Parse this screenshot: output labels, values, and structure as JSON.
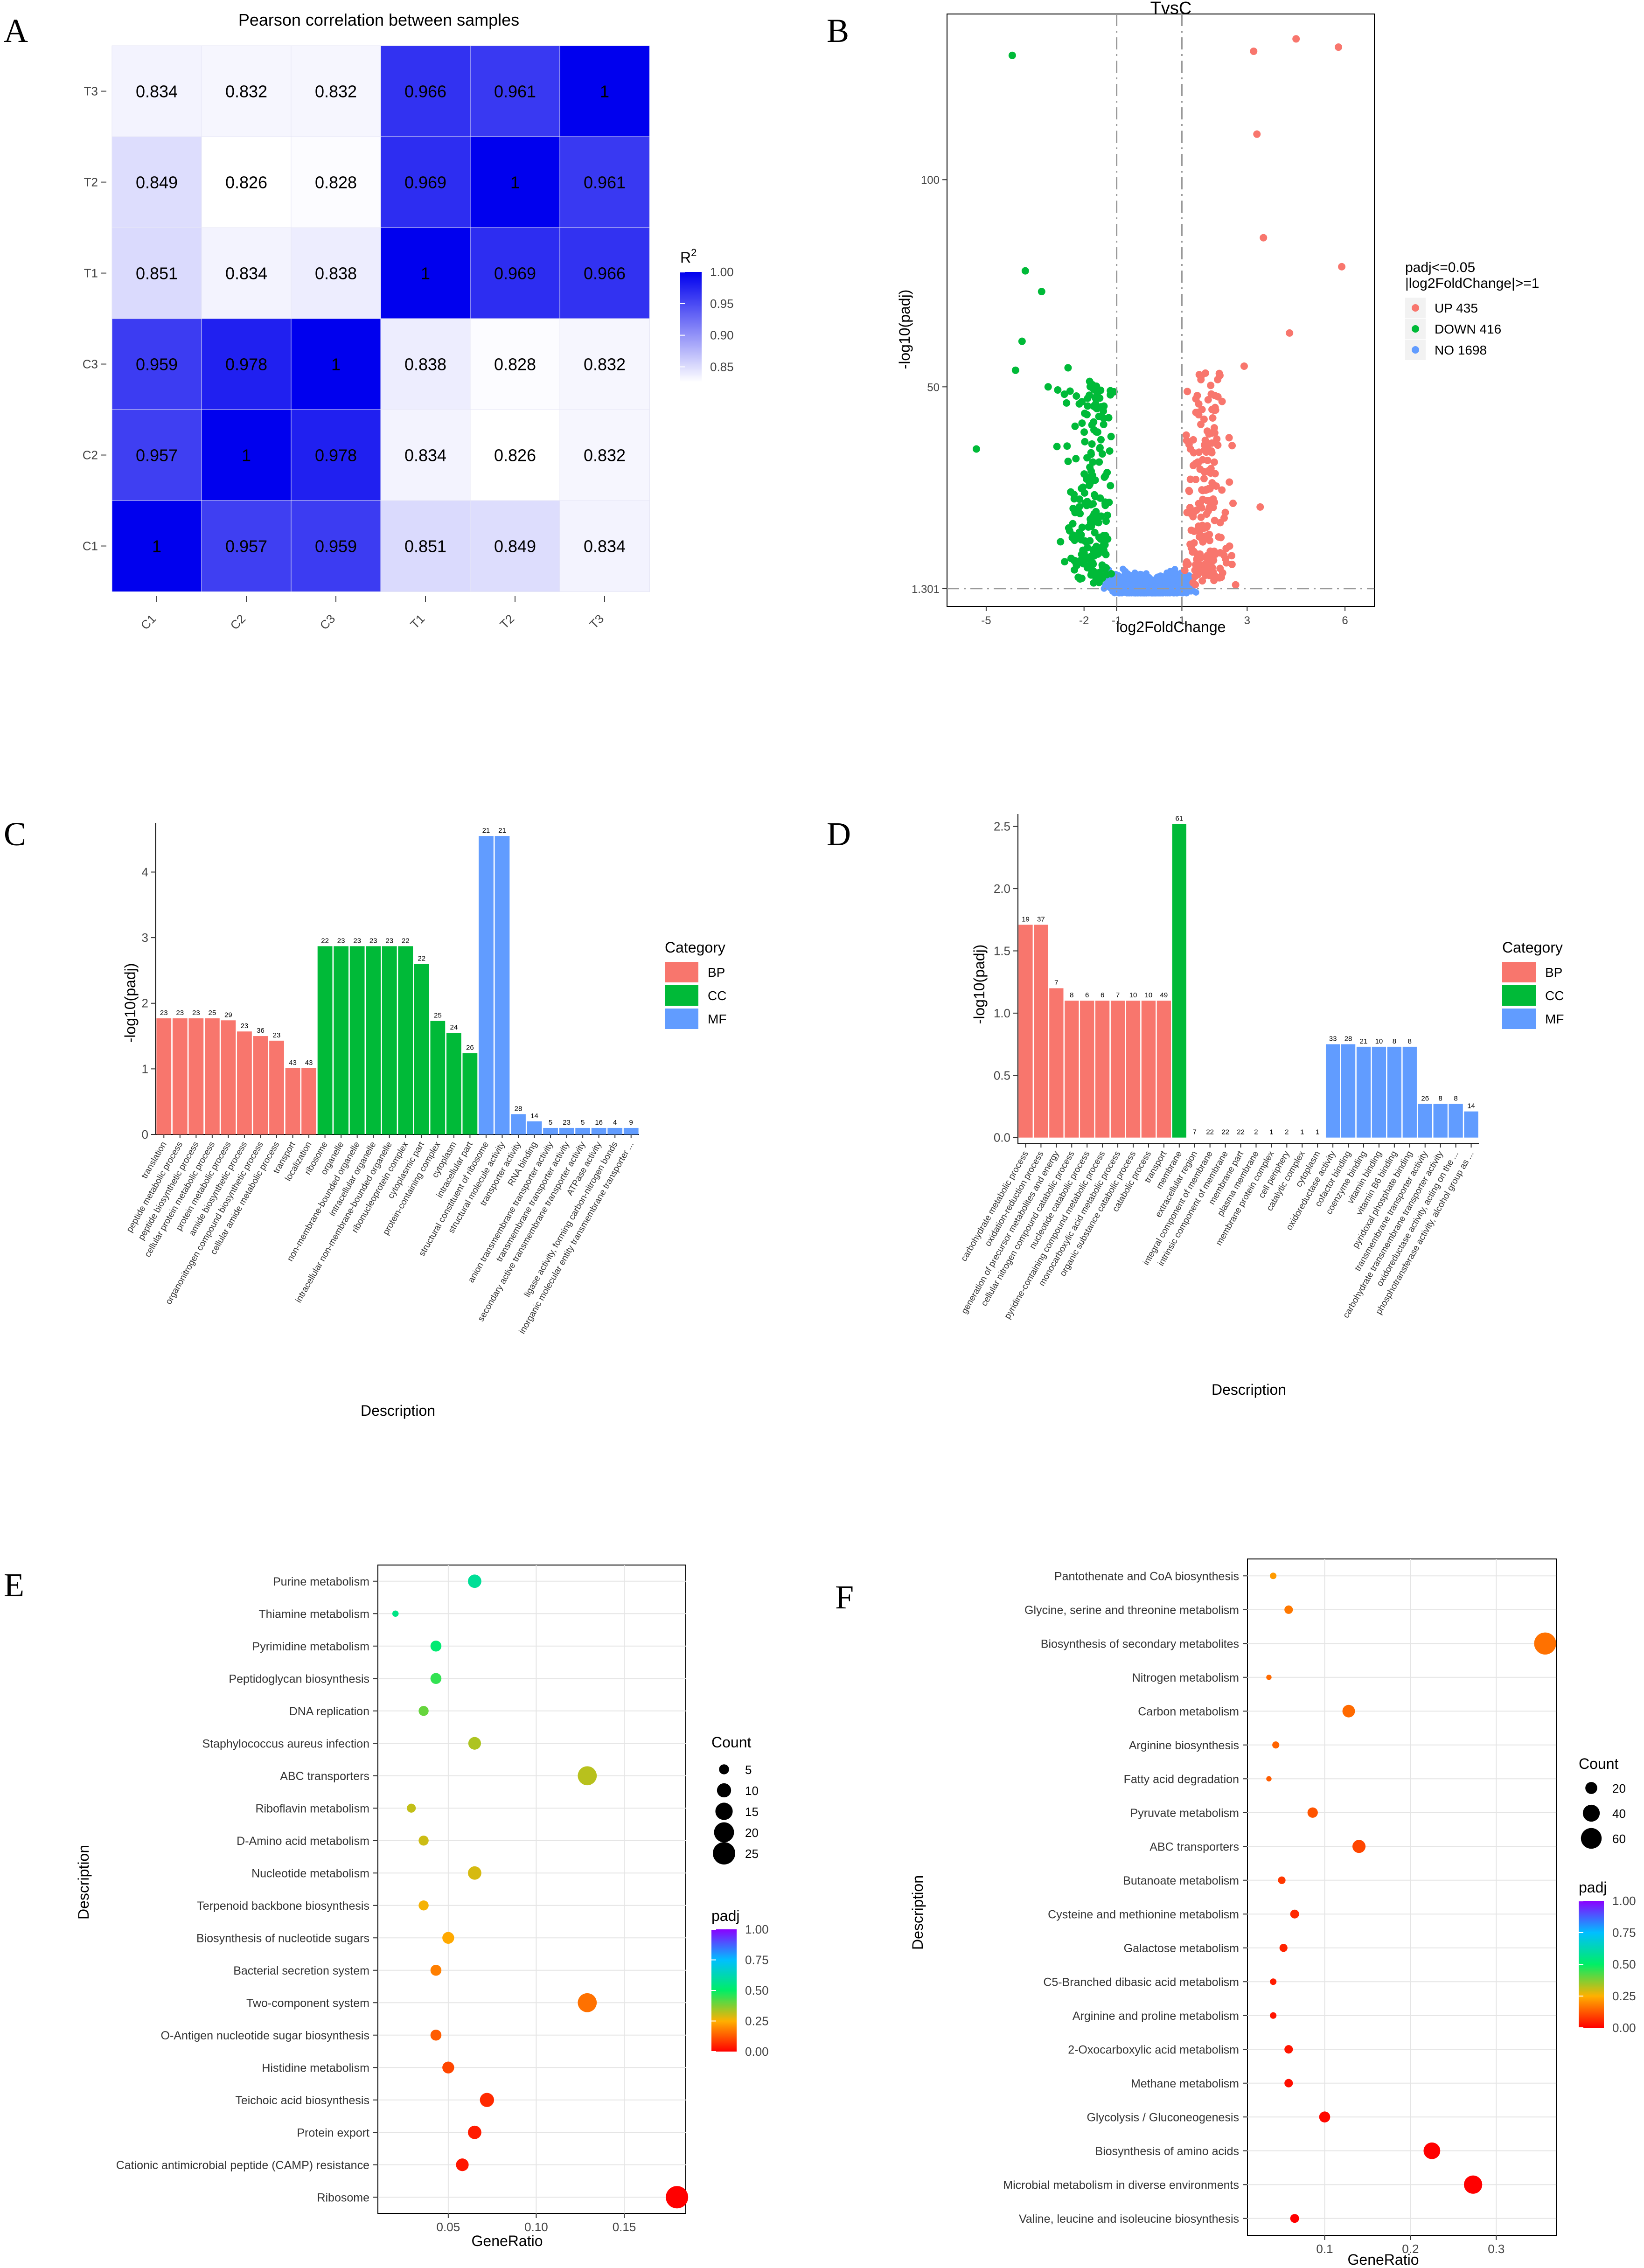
{
  "panels": {
    "A": {
      "label": "A",
      "title": "Pearson correlation between samples",
      "rows": [
        "T3",
        "T2",
        "T1",
        "C3",
        "C2",
        "C1"
      ],
      "cols": [
        "C1",
        "C2",
        "C3",
        "T1",
        "T2",
        "T3"
      ],
      "matrix": [
        [
          "0.834",
          "0.832",
          "0.832",
          "0.966",
          "0.961",
          "1"
        ],
        [
          "0.849",
          "0.826",
          "0.828",
          "0.969",
          "1",
          "0.961"
        ],
        [
          "0.851",
          "0.834",
          "0.838",
          "1",
          "0.969",
          "0.966"
        ],
        [
          "0.959",
          "0.978",
          "1",
          "0.838",
          "0.828",
          "0.832"
        ],
        [
          "0.957",
          "1",
          "0.978",
          "0.834",
          "0.826",
          "0.832"
        ],
        [
          "1",
          "0.957",
          "0.959",
          "0.851",
          "0.849",
          "0.834"
        ]
      ],
      "legend_title": "R",
      "legend_sup": "2",
      "legend_ticks": [
        "1.00",
        "0.95",
        "0.90",
        "0.85"
      ],
      "legend_values": [
        1.0,
        0.95,
        0.9,
        0.85
      ],
      "range": [
        0.826,
        1.0
      ],
      "color_low": "#ffffff",
      "color_high": "#0000ee"
    },
    "B": {
      "label": "B",
      "title": "TvsC",
      "xlabel": "log2FoldChange",
      "ylabel": "-log10(padj)",
      "xticks": [
        "-5",
        "-2",
        "-1",
        "1",
        "3",
        "6"
      ],
      "xtick_values": [
        -5,
        -2,
        -1,
        1,
        3,
        6
      ],
      "yticks": [
        "1.301",
        "50",
        "100"
      ],
      "ytick_values": [
        1.301,
        50,
        100
      ],
      "xlim": [
        -6.2,
        6.9
      ],
      "ylim": [
        -3,
        140
      ],
      "legend_title_1": "padj<=0.05",
      "legend_title_2": "|log2FoldChange|>=1",
      "legend": [
        {
          "label": "UP 435",
          "color": "#f8766d"
        },
        {
          "label": "DOWN 416",
          "color": "#00ba38"
        },
        {
          "label": "NO 1698",
          "color": "#619cff"
        }
      ],
      "highlight_up": [
        [
          3.2,
          131
        ],
        [
          4.5,
          134
        ],
        [
          5.8,
          132
        ],
        [
          5.9,
          79
        ],
        [
          3.3,
          111
        ],
        [
          3.5,
          86
        ],
        [
          4.3,
          63
        ],
        [
          3.4,
          21
        ]
      ],
      "highlight_down": [
        [
          -4.2,
          130
        ],
        [
          -3.8,
          78
        ],
        [
          -3.3,
          73
        ],
        [
          -3.9,
          61
        ],
        [
          -4.1,
          54
        ],
        [
          -5.3,
          35
        ],
        [
          -3.1,
          50
        ]
      ]
    },
    "C": {
      "label": "C",
      "xlabel": "Description",
      "ylabel": "-log10(padj)",
      "ylim": [
        0,
        4.75
      ],
      "yticks": [
        0,
        1,
        2,
        3,
        4
      ],
      "legend_title": "Category",
      "legend": [
        {
          "label": "BP",
          "color": "#f8766d"
        },
        {
          "label": "CC",
          "color": "#00ba38"
        },
        {
          "label": "MF",
          "color": "#619cff"
        }
      ],
      "bars": [
        {
          "term": "translation",
          "value": 1.77,
          "count": "23",
          "cat": "BP"
        },
        {
          "term": "peptide metabolic process",
          "value": 1.77,
          "count": "23",
          "cat": "BP"
        },
        {
          "term": "peptide biosynthetic process",
          "value": 1.77,
          "count": "23",
          "cat": "BP"
        },
        {
          "term": "cellular protein metabolic process",
          "value": 1.77,
          "count": "25",
          "cat": "BP"
        },
        {
          "term": "protein metabolic process",
          "value": 1.74,
          "count": "29",
          "cat": "BP"
        },
        {
          "term": "amide biosynthetic process",
          "value": 1.57,
          "count": "23",
          "cat": "BP"
        },
        {
          "term": "organonitrogen compound biosynthetic process",
          "value": 1.5,
          "count": "36",
          "cat": "BP"
        },
        {
          "term": "cellular amide metabolic process",
          "value": 1.43,
          "count": "23",
          "cat": "BP"
        },
        {
          "term": "transport",
          "value": 1.01,
          "count": "43",
          "cat": "BP"
        },
        {
          "term": "localization",
          "value": 1.01,
          "count": "43",
          "cat": "BP"
        },
        {
          "term": "ribosome",
          "value": 2.87,
          "count": "22",
          "cat": "CC"
        },
        {
          "term": "organelle",
          "value": 2.87,
          "count": "23",
          "cat": "CC"
        },
        {
          "term": "non-membrane-bounded organelle",
          "value": 2.87,
          "count": "23",
          "cat": "CC"
        },
        {
          "term": "intracellular organelle",
          "value": 2.87,
          "count": "23",
          "cat": "CC"
        },
        {
          "term": "intracellular non-membrane-bounded organelle",
          "value": 2.87,
          "count": "23",
          "cat": "CC"
        },
        {
          "term": "ribonucleoprotein complex",
          "value": 2.87,
          "count": "22",
          "cat": "CC"
        },
        {
          "term": "cytoplasmic part",
          "value": 2.6,
          "count": "22",
          "cat": "CC"
        },
        {
          "term": "protein-containing complex",
          "value": 1.73,
          "count": "25",
          "cat": "CC"
        },
        {
          "term": "cytoplasm",
          "value": 1.55,
          "count": "24",
          "cat": "CC"
        },
        {
          "term": "intracellular part",
          "value": 1.24,
          "count": "26",
          "cat": "CC"
        },
        {
          "term": "structural constituent of ribosome",
          "value": 4.55,
          "count": "21",
          "cat": "MF"
        },
        {
          "term": "structural molecule activity",
          "value": 4.55,
          "count": "21",
          "cat": "MF"
        },
        {
          "term": "transporter activity",
          "value": 0.31,
          "count": "28",
          "cat": "MF"
        },
        {
          "term": "RNA binding",
          "value": 0.2,
          "count": "14",
          "cat": "MF"
        },
        {
          "term": "anion transmembrane transporter activity",
          "value": 0.1,
          "count": "5",
          "cat": "MF"
        },
        {
          "term": "transmembrane transporter activity",
          "value": 0.1,
          "count": "23",
          "cat": "MF"
        },
        {
          "term": "secondary active transmembrane transporter activity",
          "value": 0.1,
          "count": "5",
          "cat": "MF"
        },
        {
          "term": "ATPase activity",
          "value": 0.1,
          "count": "16",
          "cat": "MF"
        },
        {
          "term": "ligase activity, forming carbon-nitrogen bonds",
          "value": 0.1,
          "count": "4",
          "cat": "MF"
        },
        {
          "term": "inorganic molecular entity transmembrane transporter ...",
          "value": 0.1,
          "count": "9",
          "cat": "MF"
        }
      ]
    },
    "D": {
      "label": "D",
      "xlabel": "Description",
      "ylabel": "-log10(padj)",
      "ylim": [
        -0.05,
        2.6
      ],
      "yticks": [
        0.0,
        0.5,
        1.0,
        1.5,
        2.0,
        2.5
      ],
      "ytick_labels": [
        "0.0",
        "0.5",
        "1.0",
        "1.5",
        "2.0",
        "2.5"
      ],
      "legend_title": "Category",
      "legend": [
        {
          "label": "BP",
          "color": "#f8766d"
        },
        {
          "label": "CC",
          "color": "#00ba38"
        },
        {
          "label": "MF",
          "color": "#619cff"
        }
      ],
      "bars": [
        {
          "term": "carbohydrate metabolic process",
          "value": 1.71,
          "count": "19",
          "cat": "BP"
        },
        {
          "term": "oxidation-reduction process",
          "value": 1.71,
          "count": "37",
          "cat": "BP"
        },
        {
          "term": "generation of precursor metabolites and energy",
          "value": 1.2,
          "count": "7",
          "cat": "BP"
        },
        {
          "term": "cellular nitrogen compound catabolic process",
          "value": 1.1,
          "count": "8",
          "cat": "BP"
        },
        {
          "term": "nucleotide catabolic process",
          "value": 1.1,
          "count": "6",
          "cat": "BP"
        },
        {
          "term": "pyridine-containing compound metabolic process",
          "value": 1.1,
          "count": "6",
          "cat": "BP"
        },
        {
          "term": "monocarboxylic acid metabolic process",
          "value": 1.1,
          "count": "7",
          "cat": "BP"
        },
        {
          "term": "organic substance catabolic process",
          "value": 1.1,
          "count": "10",
          "cat": "BP"
        },
        {
          "term": "catabolic process",
          "value": 1.1,
          "count": "10",
          "cat": "BP"
        },
        {
          "term": "transport",
          "value": 1.1,
          "count": "49",
          "cat": "BP"
        },
        {
          "term": "membrane",
          "value": 2.52,
          "count": "61",
          "cat": "CC"
        },
        {
          "term": "extracellular region",
          "value": 0.0,
          "count": "7",
          "cat": "CC"
        },
        {
          "term": "integral component of membrane",
          "value": 0.0,
          "count": "22",
          "cat": "CC"
        },
        {
          "term": "intrinsic component of membrane",
          "value": 0.0,
          "count": "22",
          "cat": "CC"
        },
        {
          "term": "membrane part",
          "value": 0.0,
          "count": "22",
          "cat": "CC"
        },
        {
          "term": "plasma membrane",
          "value": 0.0,
          "count": "2",
          "cat": "CC"
        },
        {
          "term": "membrane protein complex",
          "value": 0.0,
          "count": "1",
          "cat": "CC"
        },
        {
          "term": "cell periphery",
          "value": 0.0,
          "count": "2",
          "cat": "CC"
        },
        {
          "term": "catalytic complex",
          "value": 0.0,
          "count": "1",
          "cat": "CC"
        },
        {
          "term": "cytoplasm",
          "value": 0.0,
          "count": "1",
          "cat": "CC"
        },
        {
          "term": "oxidoreductase activity",
          "value": 0.75,
          "count": "33",
          "cat": "MF"
        },
        {
          "term": "cofactor binding",
          "value": 0.75,
          "count": "28",
          "cat": "MF"
        },
        {
          "term": "coenzyme binding",
          "value": 0.73,
          "count": "21",
          "cat": "MF"
        },
        {
          "term": "vitamin binding",
          "value": 0.73,
          "count": "10",
          "cat": "MF"
        },
        {
          "term": "vitamin B6 binding",
          "value": 0.73,
          "count": "8",
          "cat": "MF"
        },
        {
          "term": "pyridoxal phosphate binding",
          "value": 0.73,
          "count": "8",
          "cat": "MF"
        },
        {
          "term": "transmembrane transporter activity",
          "value": 0.27,
          "count": "26",
          "cat": "MF"
        },
        {
          "term": "carbohydrate transmembrane transporter activity",
          "value": 0.27,
          "count": "8",
          "cat": "MF"
        },
        {
          "term": "oxidoreductase activity, acting on the ...",
          "value": 0.27,
          "count": "8",
          "cat": "MF"
        },
        {
          "term": "phosphotransferase activity, alcohol group as ...",
          "value": 0.21,
          "count": "14",
          "cat": "MF"
        }
      ]
    },
    "E": {
      "label": "E",
      "xlabel": "GeneRatio",
      "ylabel": "Description",
      "xlim": [
        0.01,
        0.185
      ],
      "xticks": [
        0.05,
        0.1,
        0.15
      ],
      "xtick_labels": [
        "0.05",
        "0.10",
        "0.15"
      ],
      "count_title": "Count",
      "count_legend": [
        5,
        10,
        15,
        20,
        25
      ],
      "count_max": 25,
      "padj_title": "padj",
      "padj_ticks": [
        "1.00",
        "0.75",
        "0.50",
        "0.25",
        "0.00"
      ],
      "padj_values": [
        1.0,
        0.75,
        0.5,
        0.25,
        0.0
      ],
      "terms": [
        {
          "name": "Purine metabolism",
          "ratio": 0.065,
          "count": 9,
          "padj": 0.58
        },
        {
          "name": "Thiamine metabolism",
          "ratio": 0.02,
          "count": 2,
          "padj": 0.55
        },
        {
          "name": "Pyrimidine metabolism",
          "ratio": 0.043,
          "count": 6,
          "padj": 0.52
        },
        {
          "name": "Peptidoglycan biosynthesis",
          "ratio": 0.043,
          "count": 6,
          "padj": 0.45
        },
        {
          "name": "DNA replication",
          "ratio": 0.036,
          "count": 5,
          "padj": 0.4
        },
        {
          "name": "Staphylococcus aureus infection",
          "ratio": 0.065,
          "count": 8,
          "padj": 0.33
        },
        {
          "name": "ABC transporters",
          "ratio": 0.129,
          "count": 18,
          "padj": 0.32
        },
        {
          "name": "Riboflavin metabolism",
          "ratio": 0.029,
          "count": 4,
          "padj": 0.31
        },
        {
          "name": "D-Amino acid metabolism",
          "ratio": 0.036,
          "count": 5,
          "padj": 0.3
        },
        {
          "name": "Nucleotide metabolism",
          "ratio": 0.065,
          "count": 9,
          "padj": 0.29
        },
        {
          "name": "Terpenoid backbone biosynthesis",
          "ratio": 0.036,
          "count": 5,
          "padj": 0.26
        },
        {
          "name": "Biosynthesis of nucleotide sugars",
          "ratio": 0.05,
          "count": 7,
          "padj": 0.24
        },
        {
          "name": "Bacterial secretion system",
          "ratio": 0.043,
          "count": 6,
          "padj": 0.18
        },
        {
          "name": "Two-component system",
          "ratio": 0.129,
          "count": 18,
          "padj": 0.16
        },
        {
          "name": "O-Antigen nucleotide sugar biosynthesis",
          "ratio": 0.043,
          "count": 6,
          "padj": 0.13
        },
        {
          "name": "Histidine metabolism",
          "ratio": 0.05,
          "count": 7,
          "padj": 0.1
        },
        {
          "name": "Teichoic acid biosynthesis",
          "ratio": 0.072,
          "count": 10,
          "padj": 0.06
        },
        {
          "name": "Protein export",
          "ratio": 0.065,
          "count": 9,
          "padj": 0.04
        },
        {
          "name": "Cationic antimicrobial peptide (CAMP) resistance",
          "ratio": 0.058,
          "count": 8,
          "padj": 0.03
        },
        {
          "name": "Ribosome",
          "ratio": 0.18,
          "count": 25,
          "padj": 0.0
        }
      ]
    },
    "F": {
      "label": "F",
      "xlabel": "GeneRatio",
      "ylabel": "Description",
      "xlim": [
        0.01,
        0.37
      ],
      "xticks": [
        0.1,
        0.2,
        0.3
      ],
      "xtick_labels": [
        "0.1",
        "0.2",
        "0.3"
      ],
      "count_title": "Count",
      "count_legend": [
        20,
        40,
        60
      ],
      "count_max": 70,
      "padj_title": "padj",
      "padj_ticks": [
        "1.00",
        "0.75",
        "0.50",
        "0.25",
        "0.00"
      ],
      "padj_values": [
        1.0,
        0.75,
        0.5,
        0.25,
        0.0
      ],
      "terms": [
        {
          "name": "Pantothenate and CoA biosynthesis",
          "ratio": 0.04,
          "count": 6,
          "padj": 0.22
        },
        {
          "name": "Glycine, serine and threonine metabolism",
          "ratio": 0.058,
          "count": 10,
          "padj": 0.17
        },
        {
          "name": "Biosynthesis of secondary metabolites",
          "ratio": 0.357,
          "count": 68,
          "padj": 0.16
        },
        {
          "name": "Nitrogen metabolism",
          "ratio": 0.035,
          "count": 4,
          "padj": 0.15
        },
        {
          "name": "Carbon metabolism",
          "ratio": 0.128,
          "count": 22,
          "padj": 0.15
        },
        {
          "name": "Arginine biosynthesis",
          "ratio": 0.043,
          "count": 7,
          "padj": 0.14
        },
        {
          "name": "Fatty acid degradation",
          "ratio": 0.035,
          "count": 4,
          "padj": 0.13
        },
        {
          "name": "Pyruvate metabolism",
          "ratio": 0.086,
          "count": 15,
          "padj": 0.12
        },
        {
          "name": "ABC transporters",
          "ratio": 0.14,
          "count": 24,
          "padj": 0.1
        },
        {
          "name": "Butanoate metabolism",
          "ratio": 0.05,
          "count": 8,
          "padj": 0.08
        },
        {
          "name": "Cysteine and methionine metabolism",
          "ratio": 0.065,
          "count": 11,
          "padj": 0.06
        },
        {
          "name": "Galactose metabolism",
          "ratio": 0.052,
          "count": 9,
          "padj": 0.05
        },
        {
          "name": "C5-Branched dibasic acid metabolism",
          "ratio": 0.04,
          "count": 6,
          "padj": 0.04
        },
        {
          "name": "Arginine and proline metabolism",
          "ratio": 0.04,
          "count": 6,
          "padj": 0.03
        },
        {
          "name": "2-Oxocarboxylic acid metabolism",
          "ratio": 0.058,
          "count": 10,
          "padj": 0.03
        },
        {
          "name": "Methane metabolism",
          "ratio": 0.058,
          "count": 10,
          "padj": 0.02
        },
        {
          "name": "Glycolysis / Gluconeogenesis",
          "ratio": 0.1,
          "count": 17,
          "padj": 0.01
        },
        {
          "name": "Biosynthesis of amino acids",
          "ratio": 0.225,
          "count": 39,
          "padj": 0.0
        },
        {
          "name": "Microbial metabolism in diverse environments",
          "ratio": 0.273,
          "count": 47,
          "padj": 0.0
        },
        {
          "name": "Valine, leucine and isoleucine biosynthesis",
          "ratio": 0.065,
          "count": 11,
          "padj": 0.0
        }
      ]
    }
  }
}
